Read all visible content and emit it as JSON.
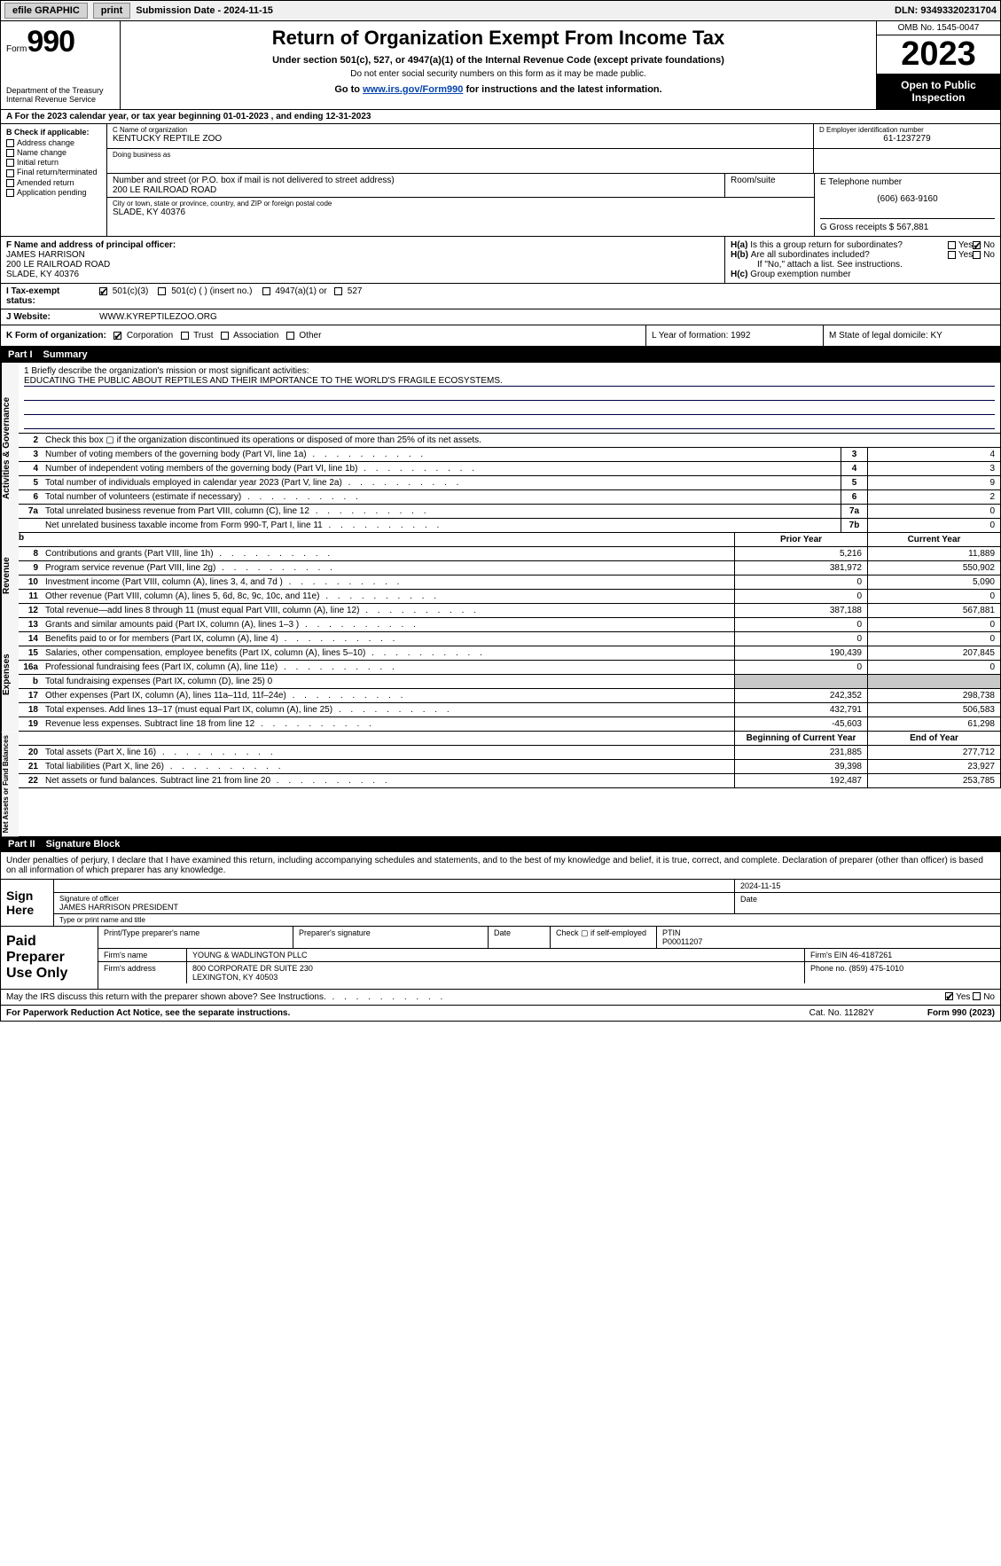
{
  "topbar": {
    "efile": "efile GRAPHIC",
    "print": "print",
    "submission": "Submission Date - 2024-11-15",
    "dln": "DLN: 93493320231704"
  },
  "header": {
    "form_prefix": "Form",
    "form_num": "990",
    "dept1": "Department of the Treasury",
    "dept2": "Internal Revenue Service",
    "title": "Return of Organization Exempt From Income Tax",
    "sub": "Under section 501(c), 527, or 4947(a)(1) of the Internal Revenue Code (except private foundations)",
    "note": "Do not enter social security numbers on this form as it may be made public.",
    "goto_pre": "Go to ",
    "goto_link": "www.irs.gov/Form990",
    "goto_post": " for instructions and the latest information.",
    "omb": "OMB No. 1545-0047",
    "year": "2023",
    "open": "Open to Public Inspection"
  },
  "period": "A For the 2023 calendar year, or tax year beginning 01-01-2023    , and ending 12-31-2023",
  "boxB": {
    "label": "B Check if applicable:",
    "opts": [
      "Address change",
      "Name change",
      "Initial return",
      "Final return/terminated",
      "Amended return",
      "Application pending"
    ]
  },
  "boxC": {
    "name_lab": "C Name of organization",
    "name": "KENTUCKY REPTILE ZOO",
    "ein_lab": "D Employer identification number",
    "ein": "61-1237279",
    "dba_lab": "Doing business as",
    "addr_lab": "Number and street (or P.O. box if mail is not delivered to street address)",
    "room_lab": "Room/suite",
    "addr": "200 LE RAILROAD ROAD",
    "city_lab": "City or town, state or province, country, and ZIP or foreign postal code",
    "city": "SLADE, KY  40376",
    "tel_lab": "E Telephone number",
    "tel": "(606) 663-9160",
    "gross_lab": "G Gross receipts $",
    "gross": "567,881"
  },
  "boxF": {
    "lab": "F  Name and address of principal officer:",
    "l1": "JAMES HARRISON",
    "l2": "200 LE RAILROAD ROAD",
    "l3": "SLADE, KY  40376"
  },
  "boxH": {
    "ha": "Is this a group return for subordinates?",
    "hb": "Are all subordinates included?",
    "hnote": "If \"No,\" attach a list. See instructions.",
    "hc": "Group exemption number",
    "yes": "Yes",
    "no": "No"
  },
  "taxexempt": {
    "lab": "I   Tax-exempt status:",
    "o1": "501(c)(3)",
    "o2": "501(c) (  ) (insert no.)",
    "o3": "4947(a)(1) or",
    "o4": "527"
  },
  "website": {
    "lab": "J   Website:",
    "val": "WWW.KYREPTILEZOO.ORG"
  },
  "korg": {
    "lab": "K Form of organization:",
    "o1": "Corporation",
    "o2": "Trust",
    "o3": "Association",
    "o4": "Other",
    "L": "L Year of formation: 1992",
    "M": "M State of legal domicile: KY"
  },
  "part1": {
    "num": "Part I",
    "title": "Summary"
  },
  "mission": {
    "lab": "1   Briefly describe the organization's mission or most significant activities:",
    "text": "EDUCATING THE PUBLIC ABOUT REPTILES AND THEIR IMPORTANCE TO THE WORLD'S FRAGILE ECOSYSTEMS."
  },
  "gov_rows": [
    {
      "n": "2",
      "t": "Check this box ▢ if the organization discontinued its operations or disposed of more than 25% of its net assets."
    },
    {
      "n": "3",
      "t": "Number of voting members of the governing body (Part VI, line 1a)",
      "nc": "3",
      "v": "4"
    },
    {
      "n": "4",
      "t": "Number of independent voting members of the governing body (Part VI, line 1b)",
      "nc": "4",
      "v": "3"
    },
    {
      "n": "5",
      "t": "Total number of individuals employed in calendar year 2023 (Part V, line 2a)",
      "nc": "5",
      "v": "9"
    },
    {
      "n": "6",
      "t": "Total number of volunteers (estimate if necessary)",
      "nc": "6",
      "v": "2"
    },
    {
      "n": "7a",
      "t": "Total unrelated business revenue from Part VIII, column (C), line 12",
      "nc": "7a",
      "v": "0"
    },
    {
      "n": "",
      "t": "Net unrelated business taxable income from Form 990-T, Part I, line 11",
      "nc": "7b",
      "v": "0"
    }
  ],
  "colhdr": {
    "b": "b",
    "py": "Prior Year",
    "cy": "Current Year"
  },
  "rev_rows": [
    {
      "n": "8",
      "t": "Contributions and grants (Part VIII, line 1h)",
      "py": "5,216",
      "cy": "11,889"
    },
    {
      "n": "9",
      "t": "Program service revenue (Part VIII, line 2g)",
      "py": "381,972",
      "cy": "550,902"
    },
    {
      "n": "10",
      "t": "Investment income (Part VIII, column (A), lines 3, 4, and 7d )",
      "py": "0",
      "cy": "5,090"
    },
    {
      "n": "11",
      "t": "Other revenue (Part VIII, column (A), lines 5, 6d, 8c, 9c, 10c, and 11e)",
      "py": "0",
      "cy": "0"
    },
    {
      "n": "12",
      "t": "Total revenue—add lines 8 through 11 (must equal Part VIII, column (A), line 12)",
      "py": "387,188",
      "cy": "567,881"
    }
  ],
  "exp_rows": [
    {
      "n": "13",
      "t": "Grants and similar amounts paid (Part IX, column (A), lines 1–3 )",
      "py": "0",
      "cy": "0"
    },
    {
      "n": "14",
      "t": "Benefits paid to or for members (Part IX, column (A), line 4)",
      "py": "0",
      "cy": "0"
    },
    {
      "n": "15",
      "t": "Salaries, other compensation, employee benefits (Part IX, column (A), lines 5–10)",
      "py": "190,439",
      "cy": "207,845"
    },
    {
      "n": "16a",
      "t": "Professional fundraising fees (Part IX, column (A), line 11e)",
      "py": "0",
      "cy": "0"
    },
    {
      "n": "b",
      "t": "Total fundraising expenses (Part IX, column (D), line 25) 0",
      "shaded": true
    },
    {
      "n": "17",
      "t": "Other expenses (Part IX, column (A), lines 11a–11d, 11f–24e)",
      "py": "242,352",
      "cy": "298,738"
    },
    {
      "n": "18",
      "t": "Total expenses. Add lines 13–17 (must equal Part IX, column (A), line 25)",
      "py": "432,791",
      "cy": "506,583"
    },
    {
      "n": "19",
      "t": "Revenue less expenses. Subtract line 18 from line 12",
      "py": "-45,603",
      "cy": "61,298"
    }
  ],
  "colhdr2": {
    "py": "Beginning of Current Year",
    "cy": "End of Year"
  },
  "net_rows": [
    {
      "n": "20",
      "t": "Total assets (Part X, line 16)",
      "py": "231,885",
      "cy": "277,712"
    },
    {
      "n": "21",
      "t": "Total liabilities (Part X, line 26)",
      "py": "39,398",
      "cy": "23,927"
    },
    {
      "n": "22",
      "t": "Net assets or fund balances. Subtract line 21 from line 20",
      "py": "192,487",
      "cy": "253,785"
    }
  ],
  "sides": {
    "gov": "Activities & Governance",
    "rev": "Revenue",
    "exp": "Expenses",
    "net": "Net Assets or Fund Balances"
  },
  "part2": {
    "num": "Part II",
    "title": "Signature Block"
  },
  "sig": {
    "decl": "Under penalties of perjury, I declare that I have examined this return, including accompanying schedules and statements, and to the best of my knowledge and belief, it is true, correct, and complete. Declaration of preparer (other than officer) is based on all information of which preparer has any knowledge.",
    "sign_here": "Sign Here",
    "date": "2024-11-15",
    "sig_lab": "Signature of officer",
    "officer": "JAMES HARRISON  PRESIDENT",
    "type_lab": "Type or print name and title",
    "date_lab": "Date"
  },
  "prep": {
    "title": "Paid Preparer Use Only",
    "h1": "Print/Type preparer's name",
    "h2": "Preparer's signature",
    "h3": "Date",
    "chk": "Check ▢ if self-employed",
    "ptin_lab": "PTIN",
    "ptin": "P00011207",
    "firm_lab": "Firm's name",
    "firm": "YOUNG & WADLINGTON PLLC",
    "ein_lab": "Firm's EIN",
    "ein": "46-4187261",
    "addr_lab": "Firm's address",
    "addr1": "800 CORPORATE DR SUITE 230",
    "addr2": "LEXINGTON, KY  40503",
    "phone_lab": "Phone no.",
    "phone": "(859) 475-1010"
  },
  "discuss": "May the IRS discuss this return with the preparer shown above? See Instructions.",
  "footer": {
    "l": "For Paperwork Reduction Act Notice, see the separate instructions.",
    "m": "Cat. No. 11282Y",
    "r": "Form 990 (2023)"
  },
  "colors": {
    "accent": "#0645ad",
    "bg": "#ffffff",
    "border": "#000000",
    "shade": "#c8c8c8",
    "topbar": "#f0f0f0"
  }
}
